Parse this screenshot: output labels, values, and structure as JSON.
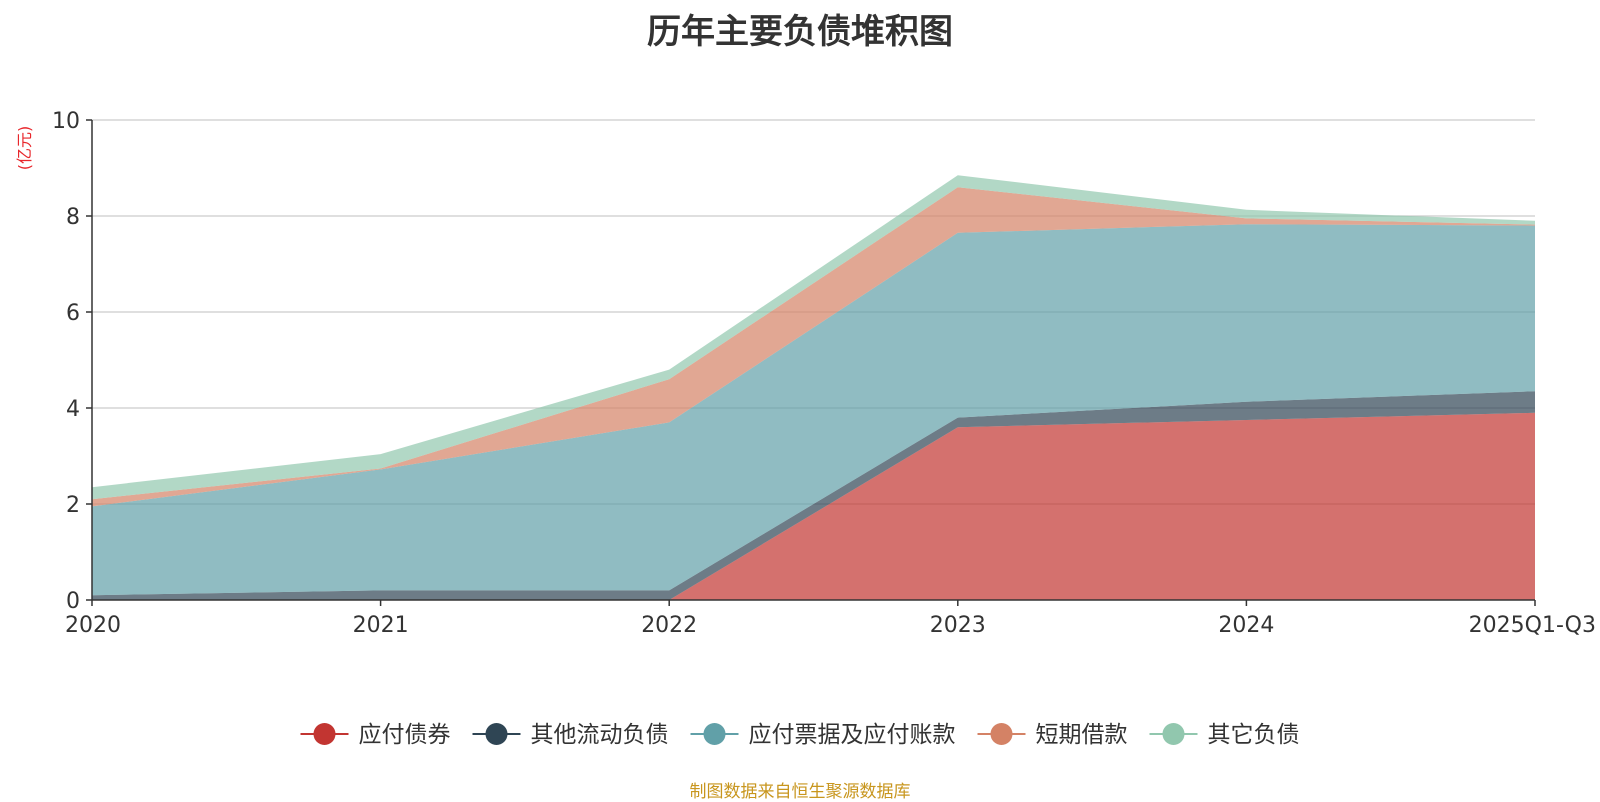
{
  "chart_data": {
    "type": "area",
    "stacked": true,
    "title": "历年主要负债堆积图",
    "unit": "(亿元)",
    "categories": [
      "2020",
      "2021",
      "2022",
      "2023",
      "2024",
      "2025Q1-Q3"
    ],
    "ylim": [
      0,
      10
    ],
    "yticks": [
      0,
      2,
      4,
      6,
      8,
      10
    ],
    "grid": true,
    "legend_position": "bottom",
    "series": [
      {
        "name": "应付债券",
        "color": "#c23531",
        "values": [
          0,
          0,
          0,
          3.6,
          3.75,
          3.9
        ]
      },
      {
        "name": "其他流动负债",
        "color": "#2f4554",
        "values": [
          0.1,
          0.2,
          0.2,
          0.2,
          0.38,
          0.45
        ]
      },
      {
        "name": "应付票据及应付账款",
        "color": "#61a0a8",
        "values": [
          1.85,
          2.52,
          3.5,
          3.85,
          3.7,
          3.45
        ]
      },
      {
        "name": "短期借款",
        "color": "#d48265",
        "values": [
          0.15,
          0.02,
          0.9,
          0.95,
          0.12,
          0.02
        ]
      },
      {
        "name": "其它负债",
        "color": "#91c7ae",
        "values": [
          0.25,
          0.3,
          0.2,
          0.25,
          0.18,
          0.08
        ]
      }
    ],
    "source": "制图数据来自恒生聚源数据库"
  }
}
